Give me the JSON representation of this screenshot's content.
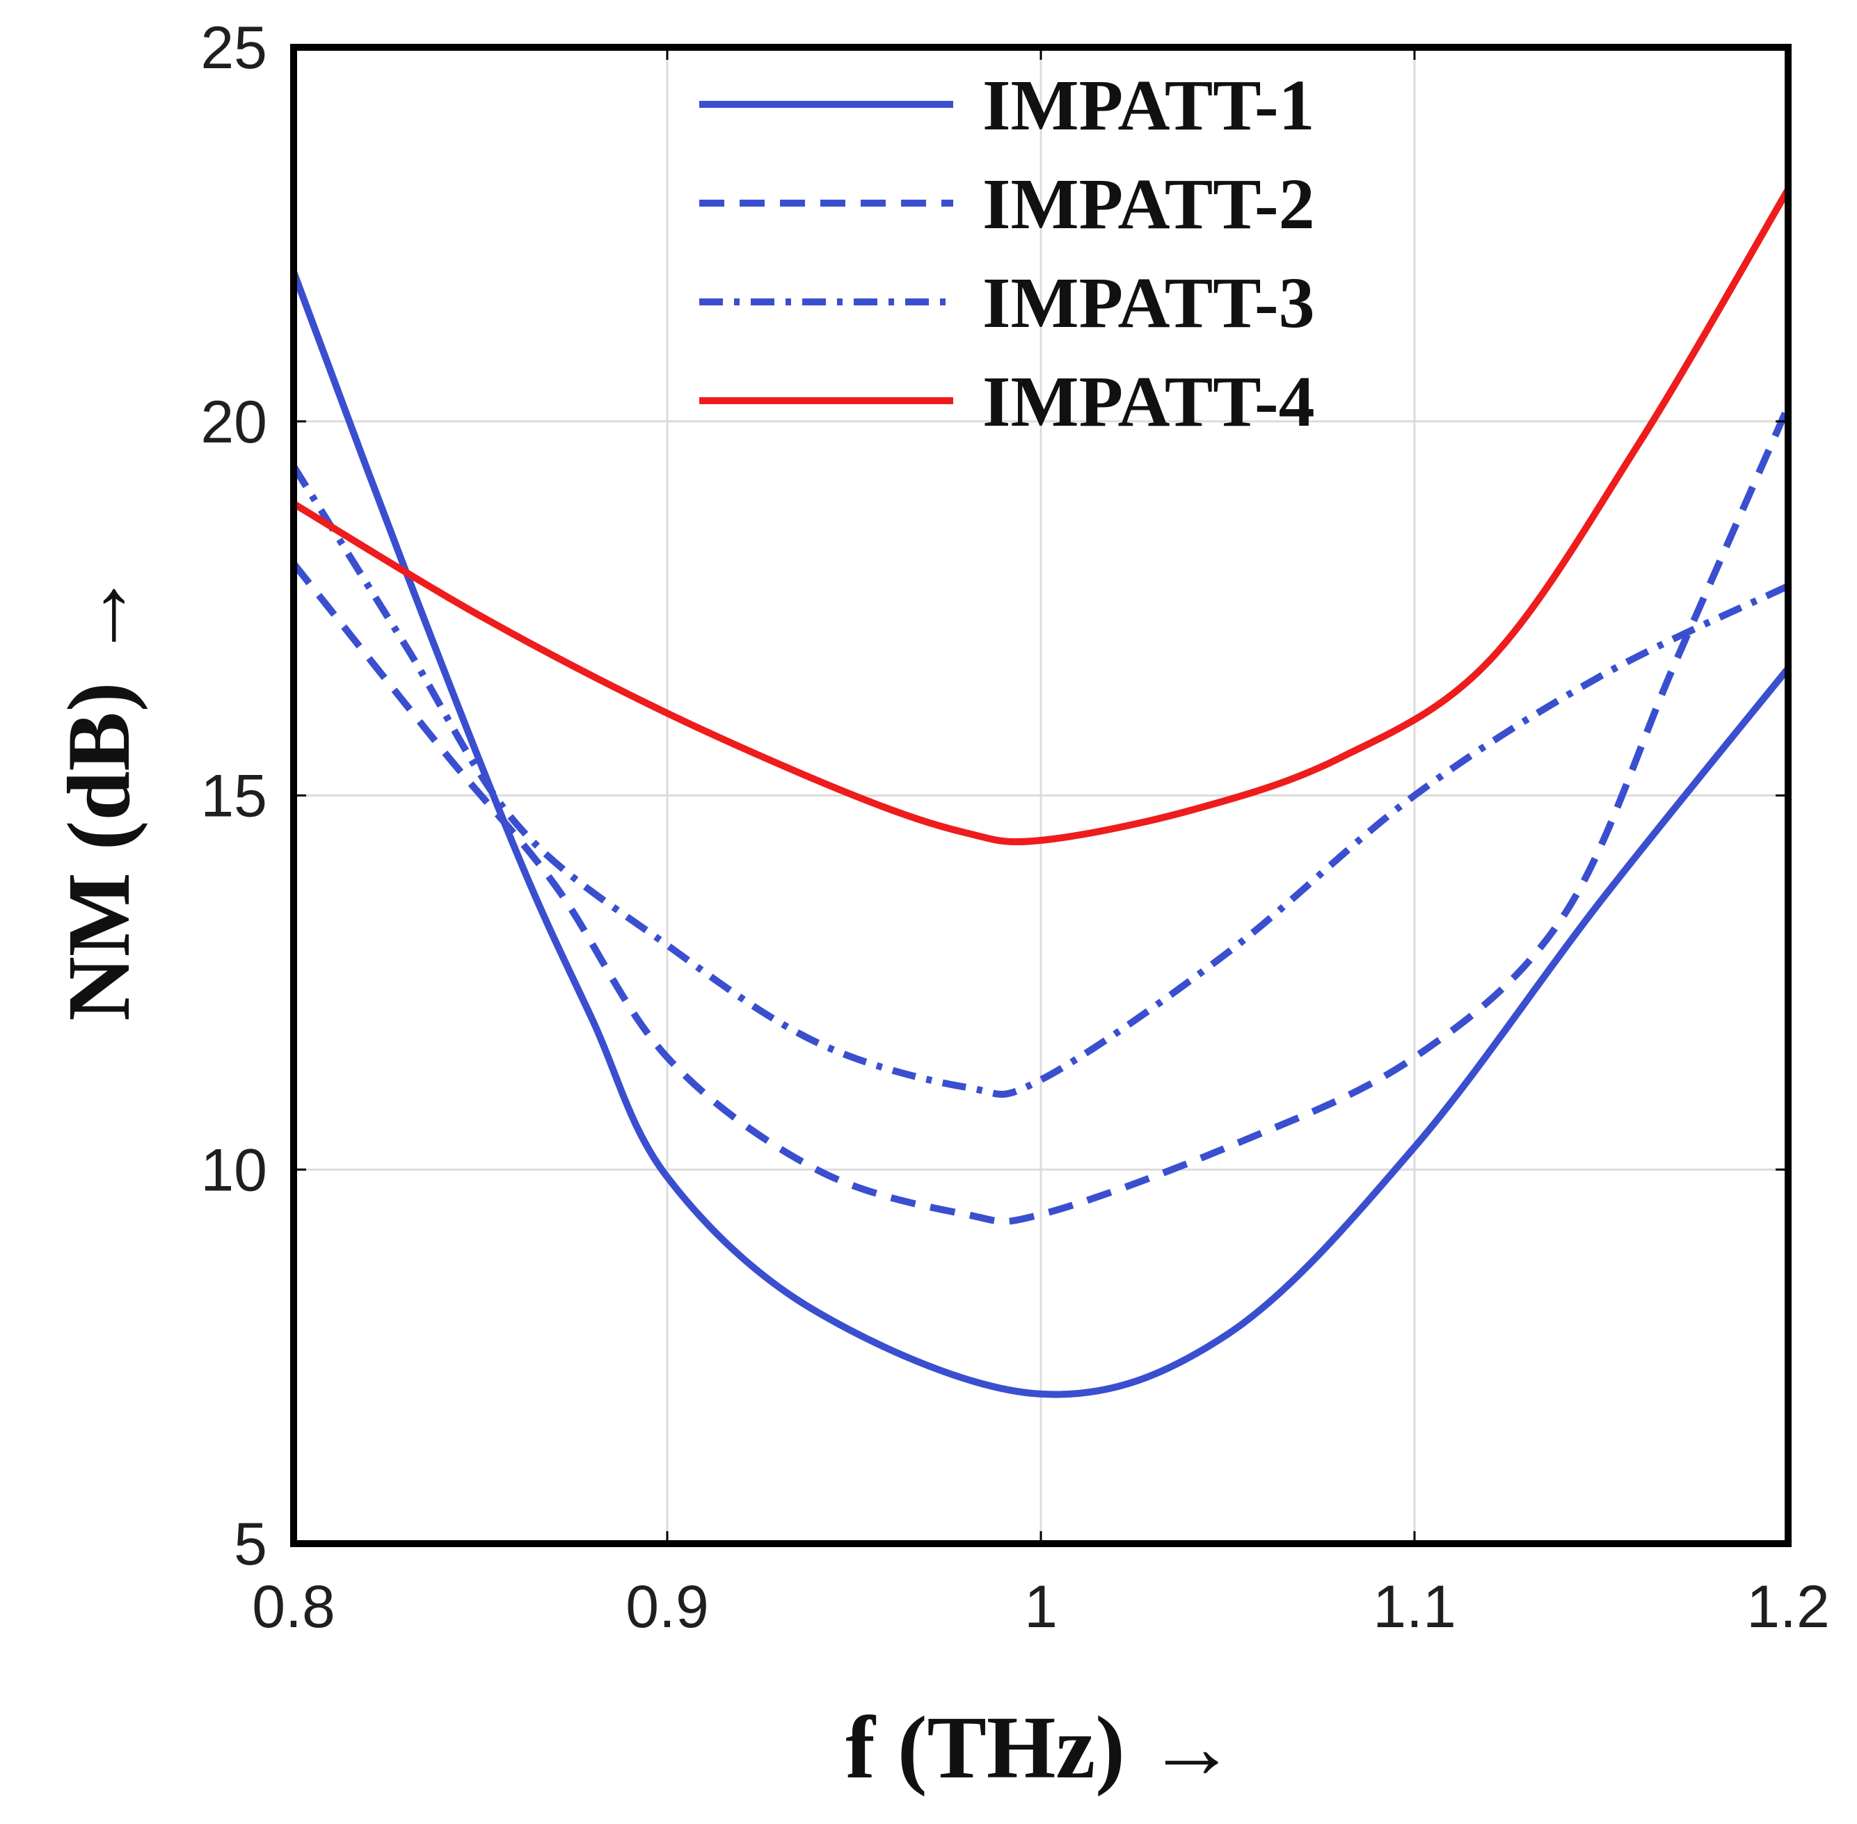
{
  "chart_data": {
    "type": "line",
    "xlabel": "f (THz) →",
    "ylabel": "NM (dB) →",
    "xlim": [
      0.8,
      1.2
    ],
    "ylim": [
      5,
      25
    ],
    "xticks": [
      "0.8",
      "0.9",
      "1",
      "1.1",
      "1.2"
    ],
    "yticks": [
      "5",
      "10",
      "15",
      "20",
      "25"
    ],
    "grid": true,
    "legend_position": "top-center",
    "series": [
      {
        "name": "IMPATT-1",
        "color": "#3a4fcf",
        "style": "solid",
        "x": [
          0.8,
          0.83,
          0.86,
          0.88,
          0.9,
          0.94,
          1.0,
          1.05,
          1.1,
          1.15,
          1.2
        ],
        "y": [
          22.0,
          18.0,
          14.2,
          12.0,
          9.9,
          8.1,
          7.0,
          7.8,
          10.3,
          13.6,
          16.7
        ]
      },
      {
        "name": "IMPATT-2",
        "color": "#3a4fcf",
        "style": "dashed",
        "x": [
          0.8,
          0.84,
          0.87,
          0.9,
          0.94,
          0.98,
          1.0,
          1.05,
          1.1,
          1.14,
          1.17,
          1.2
        ],
        "y": [
          18.1,
          15.6,
          13.8,
          11.5,
          10.0,
          9.4,
          9.4,
          10.3,
          11.5,
          13.4,
          16.8,
          20.2
        ]
      },
      {
        "name": "IMPATT-3",
        "color": "#3a4fcf",
        "style": "dashdot",
        "x": [
          0.8,
          0.83,
          0.86,
          0.9,
          0.94,
          0.98,
          1.0,
          1.05,
          1.1,
          1.15,
          1.2
        ],
        "y": [
          19.4,
          17.0,
          14.6,
          13.0,
          11.7,
          11.1,
          11.2,
          12.9,
          15.0,
          16.6,
          17.8
        ]
      },
      {
        "name": "IMPATT-4",
        "color": "#ee1c1c",
        "style": "solid",
        "x": [
          0.8,
          0.85,
          0.9,
          0.95,
          0.98,
          1.0,
          1.04,
          1.08,
          1.12,
          1.16,
          1.2
        ],
        "y": [
          18.9,
          17.4,
          16.1,
          15.0,
          14.5,
          14.4,
          14.8,
          15.5,
          16.8,
          19.7,
          23.1
        ]
      }
    ]
  }
}
